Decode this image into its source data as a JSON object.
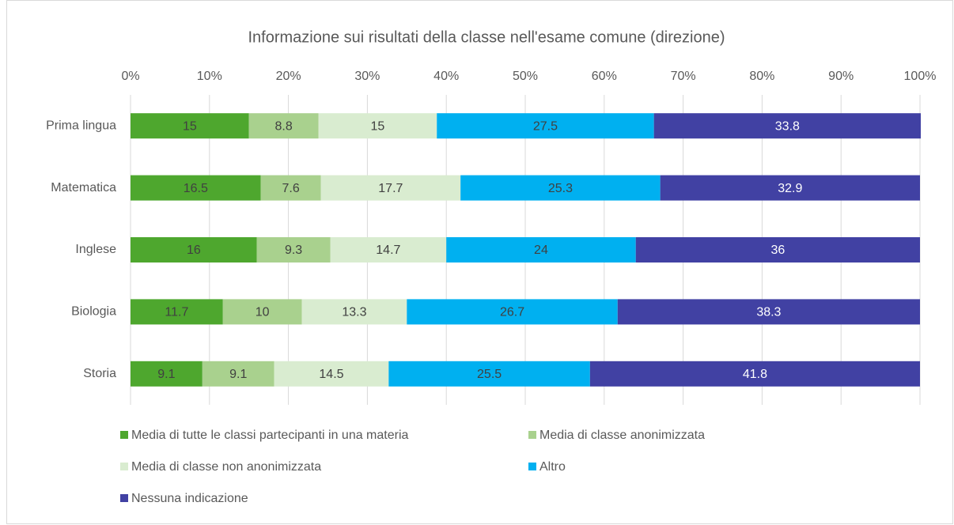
{
  "chart_data": {
    "type": "stacked_barh",
    "title": "Informazione sui risultati della classe nell'esame comune (direzione)",
    "categories": [
      "Prima lingua",
      "Matematica",
      "Inglese",
      "Biologia",
      "Storia"
    ],
    "series": [
      {
        "name": "Media di tutte le classi partecipanti in una materia",
        "color": "#4ea72e",
        "values": [
          15,
          16.5,
          16,
          11.7,
          9.1
        ]
      },
      {
        "name": "Media di classe anonimizzata",
        "color": "#a9d18e",
        "values": [
          8.8,
          7.6,
          9.3,
          10,
          9.1
        ]
      },
      {
        "name": "Media di classe non anonimizzata",
        "color": "#d9ecd0",
        "values": [
          15,
          17.7,
          14.7,
          13.3,
          14.5
        ]
      },
      {
        "name": "Altro",
        "color": "#00b0f0",
        "values": [
          27.5,
          25.3,
          24,
          26.7,
          25.5
        ]
      },
      {
        "name": "Nessuna indicazione",
        "color": "#4141a3",
        "values": [
          33.8,
          32.9,
          36,
          38.3,
          41.8
        ]
      }
    ],
    "xlim": [
      0,
      100
    ],
    "xticks": [
      {
        "value": 0,
        "label": "0%"
      },
      {
        "value": 10,
        "label": "10%"
      },
      {
        "value": 20,
        "label": "20%"
      },
      {
        "value": 30,
        "label": "30%"
      },
      {
        "value": 40,
        "label": "40%"
      },
      {
        "value": 50,
        "label": "50%"
      },
      {
        "value": 60,
        "label": "60%"
      },
      {
        "value": 70,
        "label": "70%"
      },
      {
        "value": 80,
        "label": "80%"
      },
      {
        "value": 90,
        "label": "90%"
      },
      {
        "value": 100,
        "label": "100%"
      }
    ],
    "grid": true,
    "legend": "bottom"
  }
}
